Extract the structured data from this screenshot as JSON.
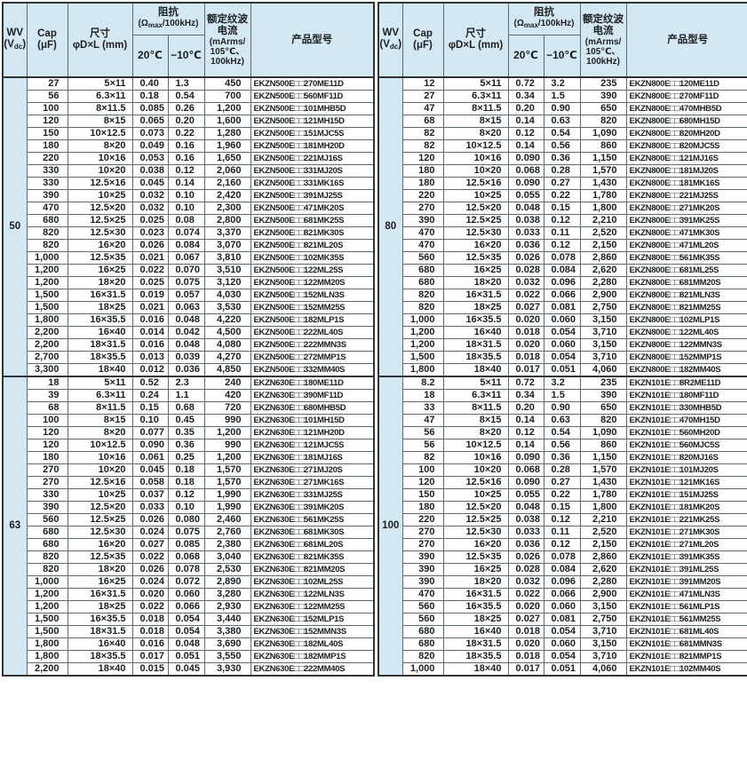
{
  "colors": {
    "header_bg": "#d3e8f3",
    "border_dark": "#2e3438",
    "border_light": "#5f6b73"
  },
  "columns": {
    "wv": {
      "line1": "WV",
      "unit_open": "(V",
      "unit_sub": "dc",
      "unit_close": ")"
    },
    "cap": {
      "line1": "Cap",
      "line2": "(μF)"
    },
    "size": {
      "line1": "尺寸",
      "line2": "φD×L (mm)"
    },
    "impedance": {
      "title": "阻抗",
      "sub_open": "(Ω",
      "sub_sub": "max",
      "sub_close": "/100kHz)",
      "temp1": "20℃",
      "temp2": "−10℃"
    },
    "ripple": {
      "line1": "额定纹波",
      "line2": "电流",
      "line3": "(mArms/",
      "line4": "105℃、",
      "line5": "100kHz)"
    },
    "part": {
      "title": "产品型号"
    }
  },
  "tables": [
    {
      "side": "left",
      "sections": [
        {
          "wv": "50",
          "rows": [
            [
              "27",
              "5×11",
              "0.40",
              "1.3",
              "450",
              "EKZN500E□□270ME11D"
            ],
            [
              "56",
              "6.3×11",
              "0.18",
              "0.54",
              "700",
              "EKZN500E□□560MF11D"
            ],
            [
              "100",
              "8×11.5",
              "0.085",
              "0.26",
              "1,200",
              "EKZN500E□□101MHB5D"
            ],
            [
              "120",
              "8×15",
              "0.065",
              "0.20",
              "1,600",
              "EKZN500E□□121MH15D"
            ],
            [
              "150",
              "10×12.5",
              "0.073",
              "0.22",
              "1,280",
              "EKZN500E□□151MJC5S"
            ],
            [
              "180",
              "8×20",
              "0.049",
              "0.16",
              "1,960",
              "EKZN500E□□181MH20D"
            ],
            [
              "220",
              "10×16",
              "0.053",
              "0.16",
              "1,650",
              "EKZN500E□□221MJ16S"
            ],
            [
              "330",
              "10×20",
              "0.038",
              "0.12",
              "2,060",
              "EKZN500E□□331MJ20S"
            ],
            [
              "330",
              "12.5×16",
              "0.045",
              "0.14",
              "2,160",
              "EKZN500E□□331MK16S"
            ],
            [
              "390",
              "10×25",
              "0.032",
              "0.10",
              "2,420",
              "EKZN500E□□391MJ25S"
            ],
            [
              "470",
              "12.5×20",
              "0.032",
              "0.10",
              "2,300",
              "EKZN500E□□471MK20S"
            ],
            [
              "680",
              "12.5×25",
              "0.025",
              "0.08",
              "2,800",
              "EKZN500E□□681MK25S"
            ],
            [
              "820",
              "12.5×30",
              "0.023",
              "0.074",
              "3,370",
              "EKZN500E□□821MK30S"
            ],
            [
              "820",
              "16×20",
              "0.026",
              "0.084",
              "3,070",
              "EKZN500E□□821ML20S"
            ],
            [
              "1,000",
              "12.5×35",
              "0.021",
              "0.067",
              "3,810",
              "EKZN500E□□102MK35S"
            ],
            [
              "1,200",
              "16×25",
              "0.022",
              "0.070",
              "3,510",
              "EKZN500E□□122ML25S"
            ],
            [
              "1,200",
              "18×20",
              "0.025",
              "0.075",
              "3,120",
              "EKZN500E□□122MM20S"
            ],
            [
              "1,500",
              "16×31.5",
              "0.019",
              "0.057",
              "4,030",
              "EKZN500E□□152MLN3S"
            ],
            [
              "1,500",
              "18×25",
              "0.021",
              "0.063",
              "3,530",
              "EKZN500E□□152MM25S"
            ],
            [
              "1,800",
              "16×35.5",
              "0.016",
              "0.048",
              "4,220",
              "EKZN500E□□182MLP1S"
            ],
            [
              "2,200",
              "16×40",
              "0.014",
              "0.042",
              "4,500",
              "EKZN500E□□222ML40S"
            ],
            [
              "2,200",
              "18×31.5",
              "0.016",
              "0.048",
              "4,080",
              "EKZN500E□□222MMN3S"
            ],
            [
              "2,700",
              "18×35.5",
              "0.013",
              "0.039",
              "4,270",
              "EKZN500E□□272MMP1S"
            ],
            [
              "3,300",
              "18×40",
              "0.012",
              "0.036",
              "4,850",
              "EKZN500E□□332MM40S"
            ]
          ]
        },
        {
          "wv": "63",
          "rows": [
            [
              "18",
              "5×11",
              "0.52",
              "2.3",
              "240",
              "EKZN630E□□180ME11D"
            ],
            [
              "39",
              "6.3×11",
              "0.24",
              "1.1",
              "420",
              "EKZN630E□□390MF11D"
            ],
            [
              "68",
              "8×11.5",
              "0.15",
              "0.68",
              "720",
              "EKZN630E□□680MHB5D"
            ],
            [
              "100",
              "8×15",
              "0.10",
              "0.45",
              "990",
              "EKZN630E□□101MH15D"
            ],
            [
              "120",
              "8×20",
              "0.077",
              "0.35",
              "1,200",
              "EKZN630E□□121MH20D"
            ],
            [
              "120",
              "10×12.5",
              "0.090",
              "0.36",
              "990",
              "EKZN630E□□121MJC5S"
            ],
            [
              "180",
              "10×16",
              "0.061",
              "0.25",
              "1,200",
              "EKZN630E□□181MJ16S"
            ],
            [
              "270",
              "10×20",
              "0.045",
              "0.18",
              "1,570",
              "EKZN630E□□271MJ20S"
            ],
            [
              "270",
              "12.5×16",
              "0.058",
              "0.18",
              "1,570",
              "EKZN630E□□271MK16S"
            ],
            [
              "330",
              "10×25",
              "0.037",
              "0.12",
              "1,990",
              "EKZN630E□□331MJ25S"
            ],
            [
              "390",
              "12.5×20",
              "0.033",
              "0.10",
              "1,990",
              "EKZN630E□□391MK20S"
            ],
            [
              "560",
              "12.5×25",
              "0.026",
              "0.080",
              "2,460",
              "EKZN630E□□561MK25S"
            ],
            [
              "680",
              "12.5×30",
              "0.024",
              "0.075",
              "2,760",
              "EKZN630E□□681MK30S"
            ],
            [
              "680",
              "16×20",
              "0.027",
              "0.085",
              "2,380",
              "EKZN630E□□681ML20S"
            ],
            [
              "820",
              "12.5×35",
              "0.022",
              "0.068",
              "3,040",
              "EKZN630E□□821MK35S"
            ],
            [
              "820",
              "18×20",
              "0.026",
              "0.078",
              "2,530",
              "EKZN630E□□821MM20S"
            ],
            [
              "1,000",
              "16×25",
              "0.024",
              "0.072",
              "2,890",
              "EKZN630E□□102ML25S"
            ],
            [
              "1,200",
              "16×31.5",
              "0.020",
              "0.060",
              "3,280",
              "EKZN630E□□122MLN3S"
            ],
            [
              "1,200",
              "18×25",
              "0.022",
              "0.066",
              "2,930",
              "EKZN630E□□122MM25S"
            ],
            [
              "1,500",
              "16×35.5",
              "0.018",
              "0.054",
              "3,440",
              "EKZN630E□□152MLP1S"
            ],
            [
              "1,500",
              "18×31.5",
              "0.018",
              "0.054",
              "3,380",
              "EKZN630E□□152MMN3S"
            ],
            [
              "1,800",
              "16×40",
              "0.016",
              "0.048",
              "3,690",
              "EKZN630E□□182ML40S"
            ],
            [
              "1,800",
              "18×35.5",
              "0.017",
              "0.051",
              "3,550",
              "EKZN630E□□182MMP1S"
            ],
            [
              "2,200",
              "18×40",
              "0.015",
              "0.045",
              "3,930",
              "EKZN630E□□222MM40S"
            ]
          ]
        }
      ]
    },
    {
      "side": "right",
      "sections": [
        {
          "wv": "80",
          "rows": [
            [
              "12",
              "5×11",
              "0.72",
              "3.2",
              "235",
              "EKZN800E□□120ME11D"
            ],
            [
              "27",
              "6.3×11",
              "0.34",
              "1.5",
              "390",
              "EKZN800E□□270MF11D"
            ],
            [
              "47",
              "8×11.5",
              "0.20",
              "0.90",
              "650",
              "EKZN800E□□470MHB5D"
            ],
            [
              "68",
              "8×15",
              "0.14",
              "0.63",
              "820",
              "EKZN800E□□680MH15D"
            ],
            [
              "82",
              "8×20",
              "0.12",
              "0.54",
              "1,090",
              "EKZN800E□□820MH20D"
            ],
            [
              "82",
              "10×12.5",
              "0.14",
              "0.56",
              "860",
              "EKZN800E□□820MJC5S"
            ],
            [
              "120",
              "10×16",
              "0.090",
              "0.36",
              "1,150",
              "EKZN800E□□121MJ16S"
            ],
            [
              "180",
              "10×20",
              "0.068",
              "0.28",
              "1,570",
              "EKZN800E□□181MJ20S"
            ],
            [
              "180",
              "12.5×16",
              "0.090",
              "0.27",
              "1,430",
              "EKZN800E□□181MK16S"
            ],
            [
              "220",
              "10×25",
              "0.055",
              "0.22",
              "1,780",
              "EKZN800E□□221MJ25S"
            ],
            [
              "270",
              "12.5×20",
              "0.048",
              "0.15",
              "1,800",
              "EKZN800E□□271MK20S"
            ],
            [
              "390",
              "12.5×25",
              "0.038",
              "0.12",
              "2,210",
              "EKZN800E□□391MK25S"
            ],
            [
              "470",
              "12.5×30",
              "0.033",
              "0.11",
              "2,520",
              "EKZN800E□□471MK30S"
            ],
            [
              "470",
              "16×20",
              "0.036",
              "0.12",
              "2,150",
              "EKZN800E□□471ML20S"
            ],
            [
              "560",
              "12.5×35",
              "0.026",
              "0.078",
              "2,860",
              "EKZN800E□□561MK35S"
            ],
            [
              "680",
              "16×25",
              "0.028",
              "0.084",
              "2,620",
              "EKZN800E□□681ML25S"
            ],
            [
              "680",
              "18×20",
              "0.032",
              "0.096",
              "2,280",
              "EKZN800E□□681MM20S"
            ],
            [
              "820",
              "16×31.5",
              "0.022",
              "0.066",
              "2,900",
              "EKZN800E□□821MLN3S"
            ],
            [
              "820",
              "18×25",
              "0.027",
              "0.081",
              "2,750",
              "EKZN800E□□821MM25S"
            ],
            [
              "1,000",
              "16×35.5",
              "0.020",
              "0.060",
              "3,150",
              "EKZN800E□□102MLP1S"
            ],
            [
              "1,200",
              "16×40",
              "0.018",
              "0.054",
              "3,710",
              "EKZN800E□□122ML40S"
            ],
            [
              "1,200",
              "18×31.5",
              "0.020",
              "0.060",
              "3,150",
              "EKZN800E□□122MMN3S"
            ],
            [
              "1,500",
              "18×35.5",
              "0.018",
              "0.054",
              "3,710",
              "EKZN800E□□152MMP1S"
            ],
            [
              "1,800",
              "18×40",
              "0.017",
              "0.051",
              "4,060",
              "EKZN800E□□182MM40S"
            ]
          ]
        },
        {
          "wv": "100",
          "rows": [
            [
              "8.2",
              "5×11",
              "0.72",
              "3.2",
              "235",
              "EKZN101E□□8R2ME11D"
            ],
            [
              "18",
              "6.3×11",
              "0.34",
              "1.5",
              "390",
              "EKZN101E□□180MF11D"
            ],
            [
              "33",
              "8×11.5",
              "0.20",
              "0.90",
              "650",
              "EKZN101E□□330MHB5D"
            ],
            [
              "47",
              "8×15",
              "0.14",
              "0.63",
              "820",
              "EKZN101E□□470MH15D"
            ],
            [
              "56",
              "8×20",
              "0.12",
              "0.54",
              "1,090",
              "EKZN101E□□560MH20D"
            ],
            [
              "56",
              "10×12.5",
              "0.14",
              "0.56",
              "860",
              "EKZN101E□□560MJC5S"
            ],
            [
              "82",
              "10×16",
              "0.090",
              "0.36",
              "1,150",
              "EKZN101E□□820MJ16S"
            ],
            [
              "100",
              "10×20",
              "0.068",
              "0.28",
              "1,570",
              "EKZN101E□□101MJ20S"
            ],
            [
              "120",
              "12.5×16",
              "0.090",
              "0.27",
              "1,430",
              "EKZN101E□□121MK16S"
            ],
            [
              "150",
              "10×25",
              "0.055",
              "0.22",
              "1,780",
              "EKZN101E□□151MJ25S"
            ],
            [
              "180",
              "12.5×20",
              "0.048",
              "0.15",
              "1,800",
              "EKZN101E□□181MK20S"
            ],
            [
              "220",
              "12.5×25",
              "0.038",
              "0.12",
              "2,210",
              "EKZN101E□□221MK25S"
            ],
            [
              "270",
              "12.5×30",
              "0.033",
              "0.11",
              "2,520",
              "EKZN101E□□271MK30S"
            ],
            [
              "270",
              "16×20",
              "0.036",
              "0.12",
              "2,150",
              "EKZN101E□□271ML20S"
            ],
            [
              "390",
              "12.5×35",
              "0.026",
              "0.078",
              "2,860",
              "EKZN101E□□391MK35S"
            ],
            [
              "390",
              "16×25",
              "0.028",
              "0.084",
              "2,620",
              "EKZN101E□□391ML25S"
            ],
            [
              "390",
              "18×20",
              "0.032",
              "0.096",
              "2,280",
              "EKZN101E□□391MM20S"
            ],
            [
              "470",
              "16×31.5",
              "0.022",
              "0.066",
              "2,900",
              "EKZN101E□□471MLN3S"
            ],
            [
              "560",
              "16×35.5",
              "0.020",
              "0.060",
              "3,150",
              "EKZN101E□□561MLP1S"
            ],
            [
              "560",
              "18×25",
              "0.027",
              "0.081",
              "2,750",
              "EKZN101E□□561MM25S"
            ],
            [
              "680",
              "16×40",
              "0.018",
              "0.054",
              "3,710",
              "EKZN101E□□681ML40S"
            ],
            [
              "680",
              "18×31.5",
              "0.020",
              "0.060",
              "3,150",
              "EKZN101E□□681MMN3S"
            ],
            [
              "820",
              "18×35.5",
              "0.018",
              "0.054",
              "3,710",
              "EKZN101E□□821MMP1S"
            ],
            [
              "1,000",
              "18×40",
              "0.017",
              "0.051",
              "4,060",
              "EKZN101E□□102MM40S"
            ]
          ]
        }
      ]
    }
  ]
}
